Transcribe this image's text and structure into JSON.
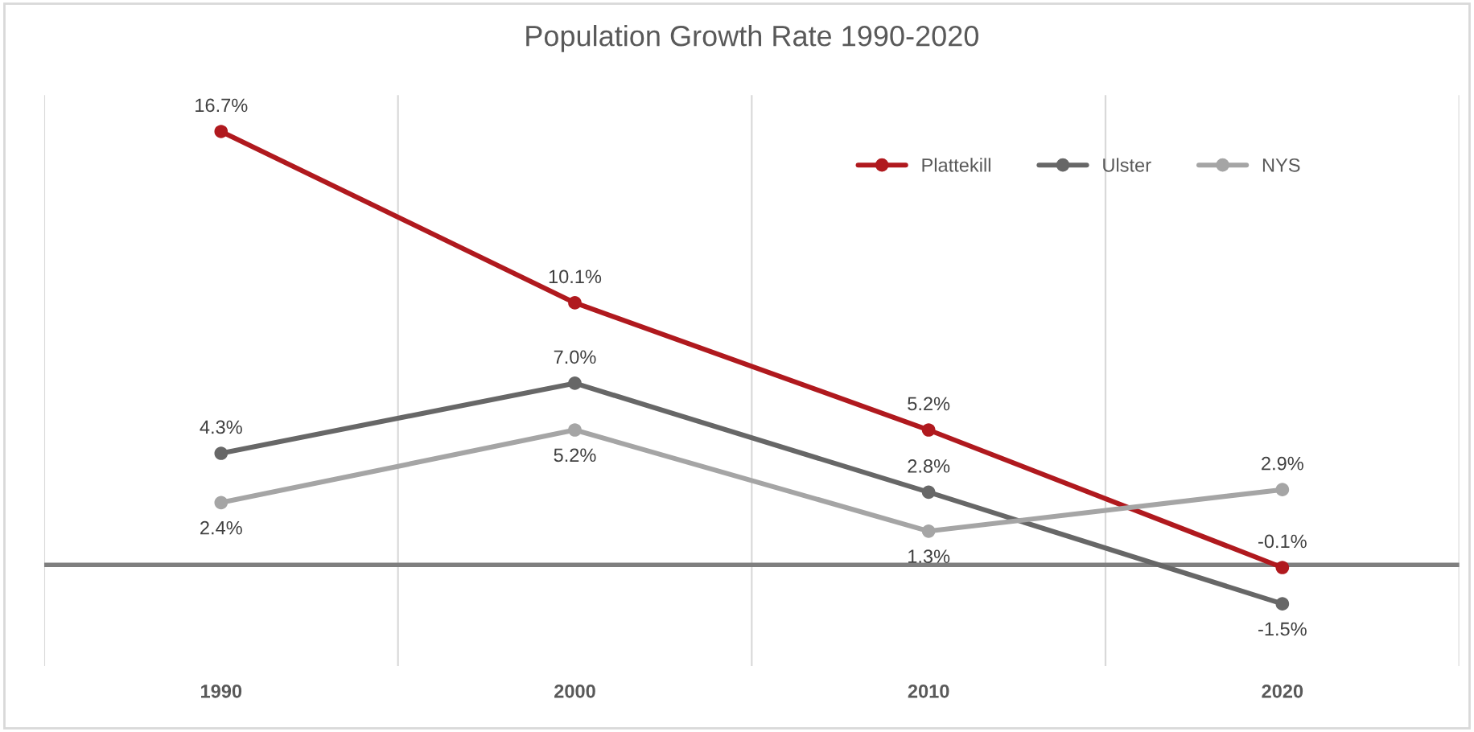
{
  "chart_data": {
    "type": "line",
    "title": "Population Growth Rate 1990-2020",
    "categories": [
      "1990",
      "2000",
      "2010",
      "2020"
    ],
    "series": [
      {
        "name": "Plattekill",
        "color": "#b0191e",
        "values": [
          16.7,
          10.1,
          5.2,
          -0.1
        ],
        "value_labels": [
          "16.7%",
          "10.1%",
          "5.2%",
          "-0.1%"
        ]
      },
      {
        "name": "Ulster",
        "color": "#676767",
        "values": [
          4.3,
          7.0,
          2.8,
          -1.5
        ],
        "value_labels": [
          "4.3%",
          "7.0%",
          "2.8%",
          "-1.5%"
        ]
      },
      {
        "name": "NYS",
        "color": "#a5a5a5",
        "values": [
          2.4,
          5.2,
          1.3,
          2.9
        ],
        "value_labels": [
          "2.4%",
          "5.2%",
          "1.3%",
          "2.9%"
        ]
      }
    ],
    "ylim": [
      -3.9,
      18.1
    ],
    "tick_labels": "x",
    "ref_lines": [
      {
        "axis": "y",
        "value": 0,
        "color": "#7f7f7f"
      }
    ],
    "grid": "x",
    "legend": "top right",
    "marker": "circle",
    "line_style": "solid"
  }
}
